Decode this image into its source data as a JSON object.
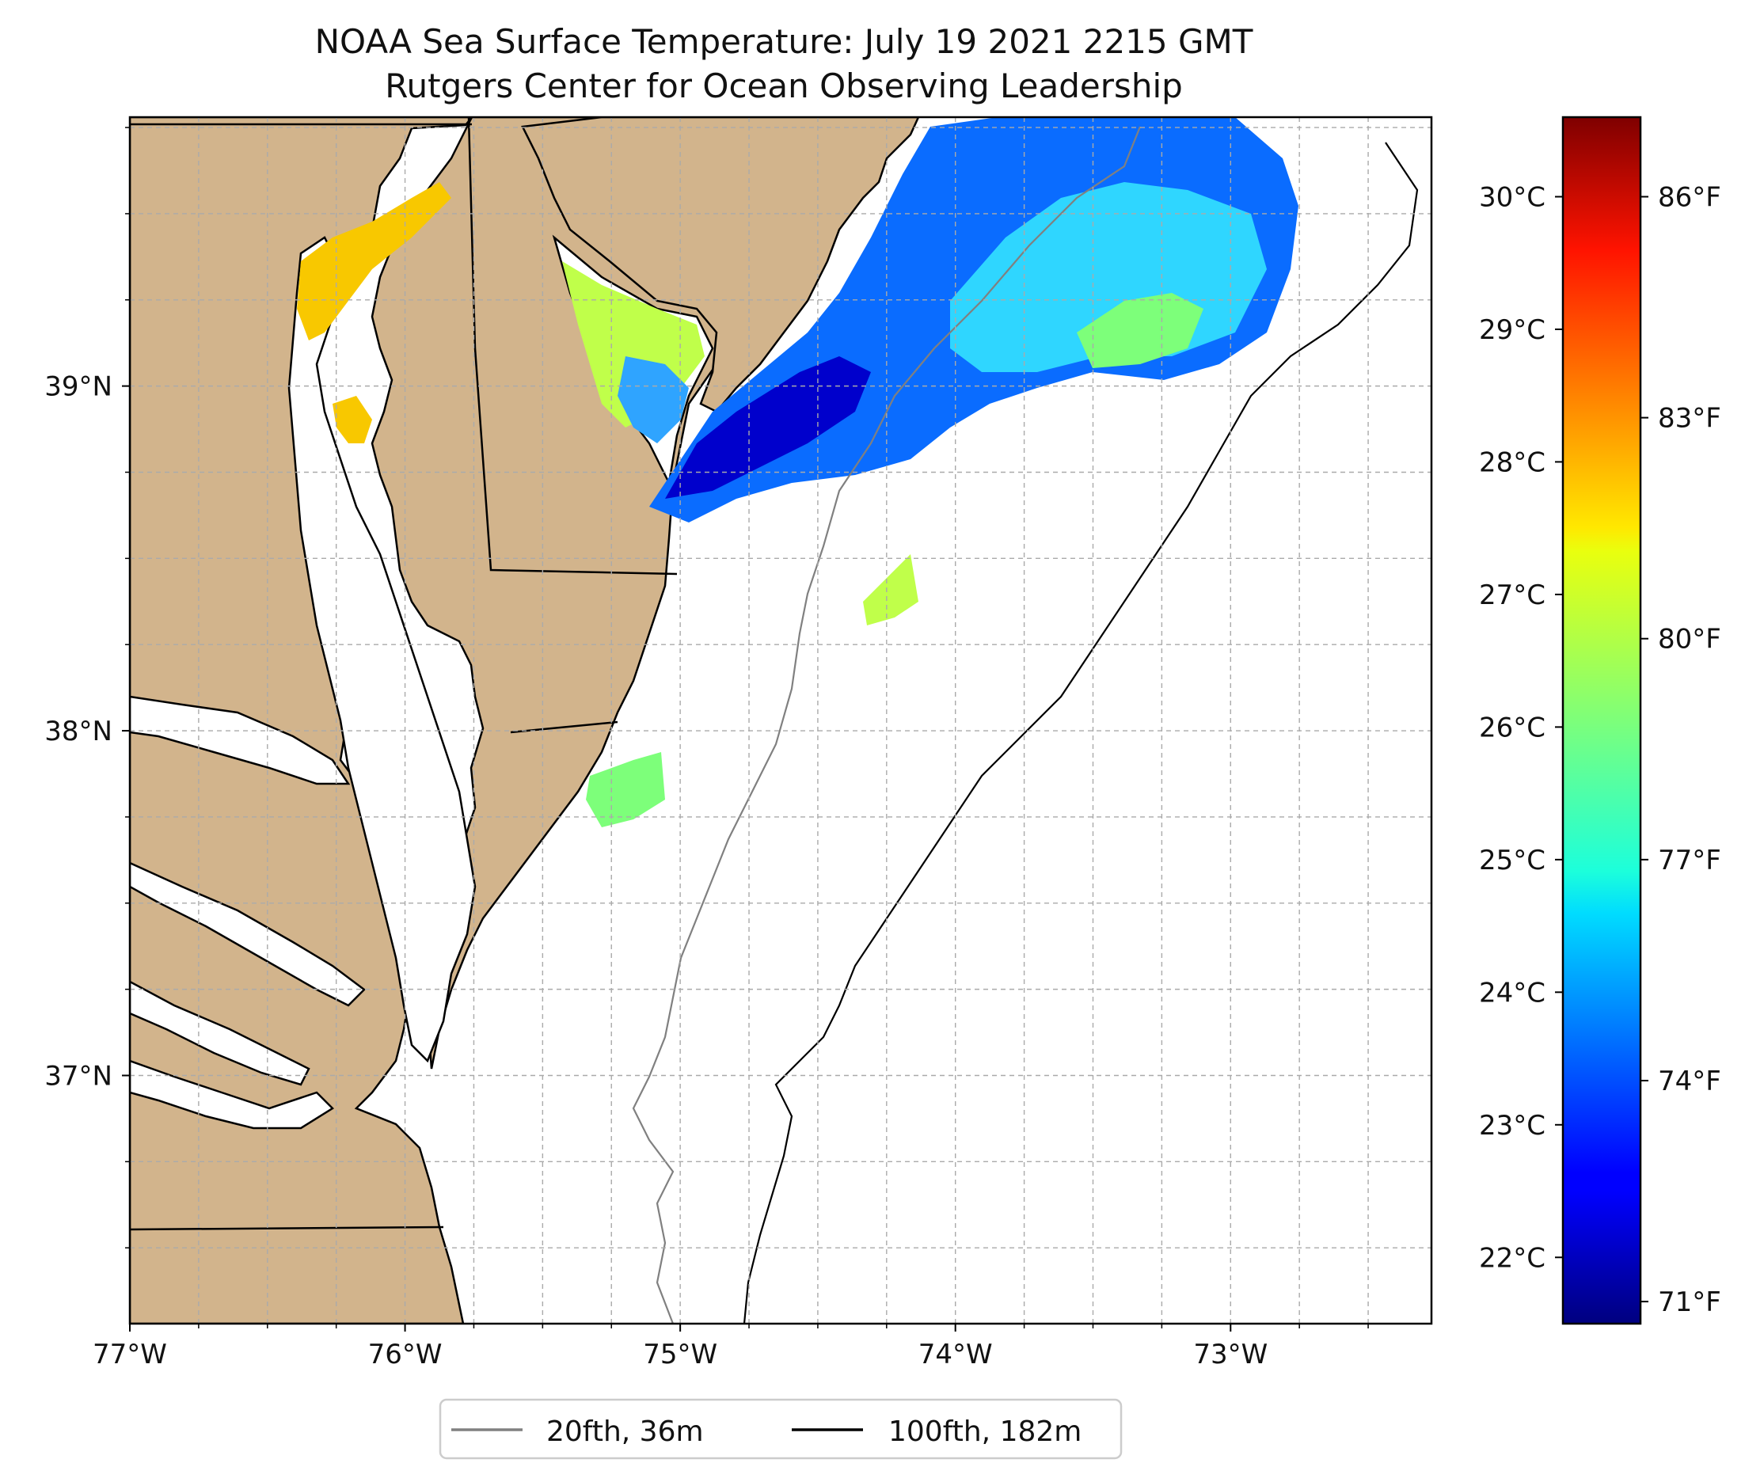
{
  "title": {
    "line1": "NOAA Sea Surface Temperature: July 19 2021 2215 GMT",
    "line2": "Rutgers Center for Ocean Observing Leadership"
  },
  "map": {
    "lon_range": [
      -77.0,
      -72.27
    ],
    "lat_range": [
      36.28,
      39.78
    ],
    "x_ticks": [
      {
        "value": -77,
        "label": "77°W"
      },
      {
        "value": -76,
        "label": "76°W"
      },
      {
        "value": -75,
        "label": "75°W"
      },
      {
        "value": -74,
        "label": "74°W"
      },
      {
        "value": -73,
        "label": "73°W"
      }
    ],
    "y_ticks": [
      {
        "value": 37,
        "label": "37°N"
      },
      {
        "value": 38,
        "label": "38°N"
      },
      {
        "value": 39,
        "label": "39°N"
      }
    ],
    "minor_lon": [
      -76.75,
      -76.5,
      -76.25,
      -75.75,
      -75.5,
      -75.25,
      -74.75,
      -74.5,
      -74.25,
      -73.75,
      -73.5,
      -73.25,
      -72.75,
      -72.5
    ],
    "minor_lat": [
      36.5,
      36.75,
      37.25,
      37.5,
      37.75,
      38.25,
      38.5,
      38.75,
      39.25,
      39.5,
      39.75
    ],
    "land_color": "#d2b48c",
    "isobath_20_color": "#808080",
    "isobath_100_color": "#000000"
  },
  "colorbar": {
    "celsius_range": [
      21.5,
      30.6
    ],
    "celsius_ticks": [
      {
        "value": 22,
        "label": "22°C"
      },
      {
        "value": 23,
        "label": "23°C"
      },
      {
        "value": 24,
        "label": "24°C"
      },
      {
        "value": 25,
        "label": "25°C"
      },
      {
        "value": 26,
        "label": "26°C"
      },
      {
        "value": 27,
        "label": "27°C"
      },
      {
        "value": 28,
        "label": "28°C"
      },
      {
        "value": 29,
        "label": "29°C"
      },
      {
        "value": 30,
        "label": "30°C"
      }
    ],
    "fahrenheit_ticks": [
      {
        "value": 71,
        "label": "71°F"
      },
      {
        "value": 74,
        "label": "74°F"
      },
      {
        "value": 77,
        "label": "77°F"
      },
      {
        "value": 80,
        "label": "80°F"
      },
      {
        "value": 83,
        "label": "83°F"
      },
      {
        "value": 86,
        "label": "86°F"
      }
    ]
  },
  "legend": [
    {
      "label": "20fth, 36m",
      "color": "#808080"
    },
    {
      "label": "100fth, 182m",
      "color": "#000000"
    }
  ]
}
